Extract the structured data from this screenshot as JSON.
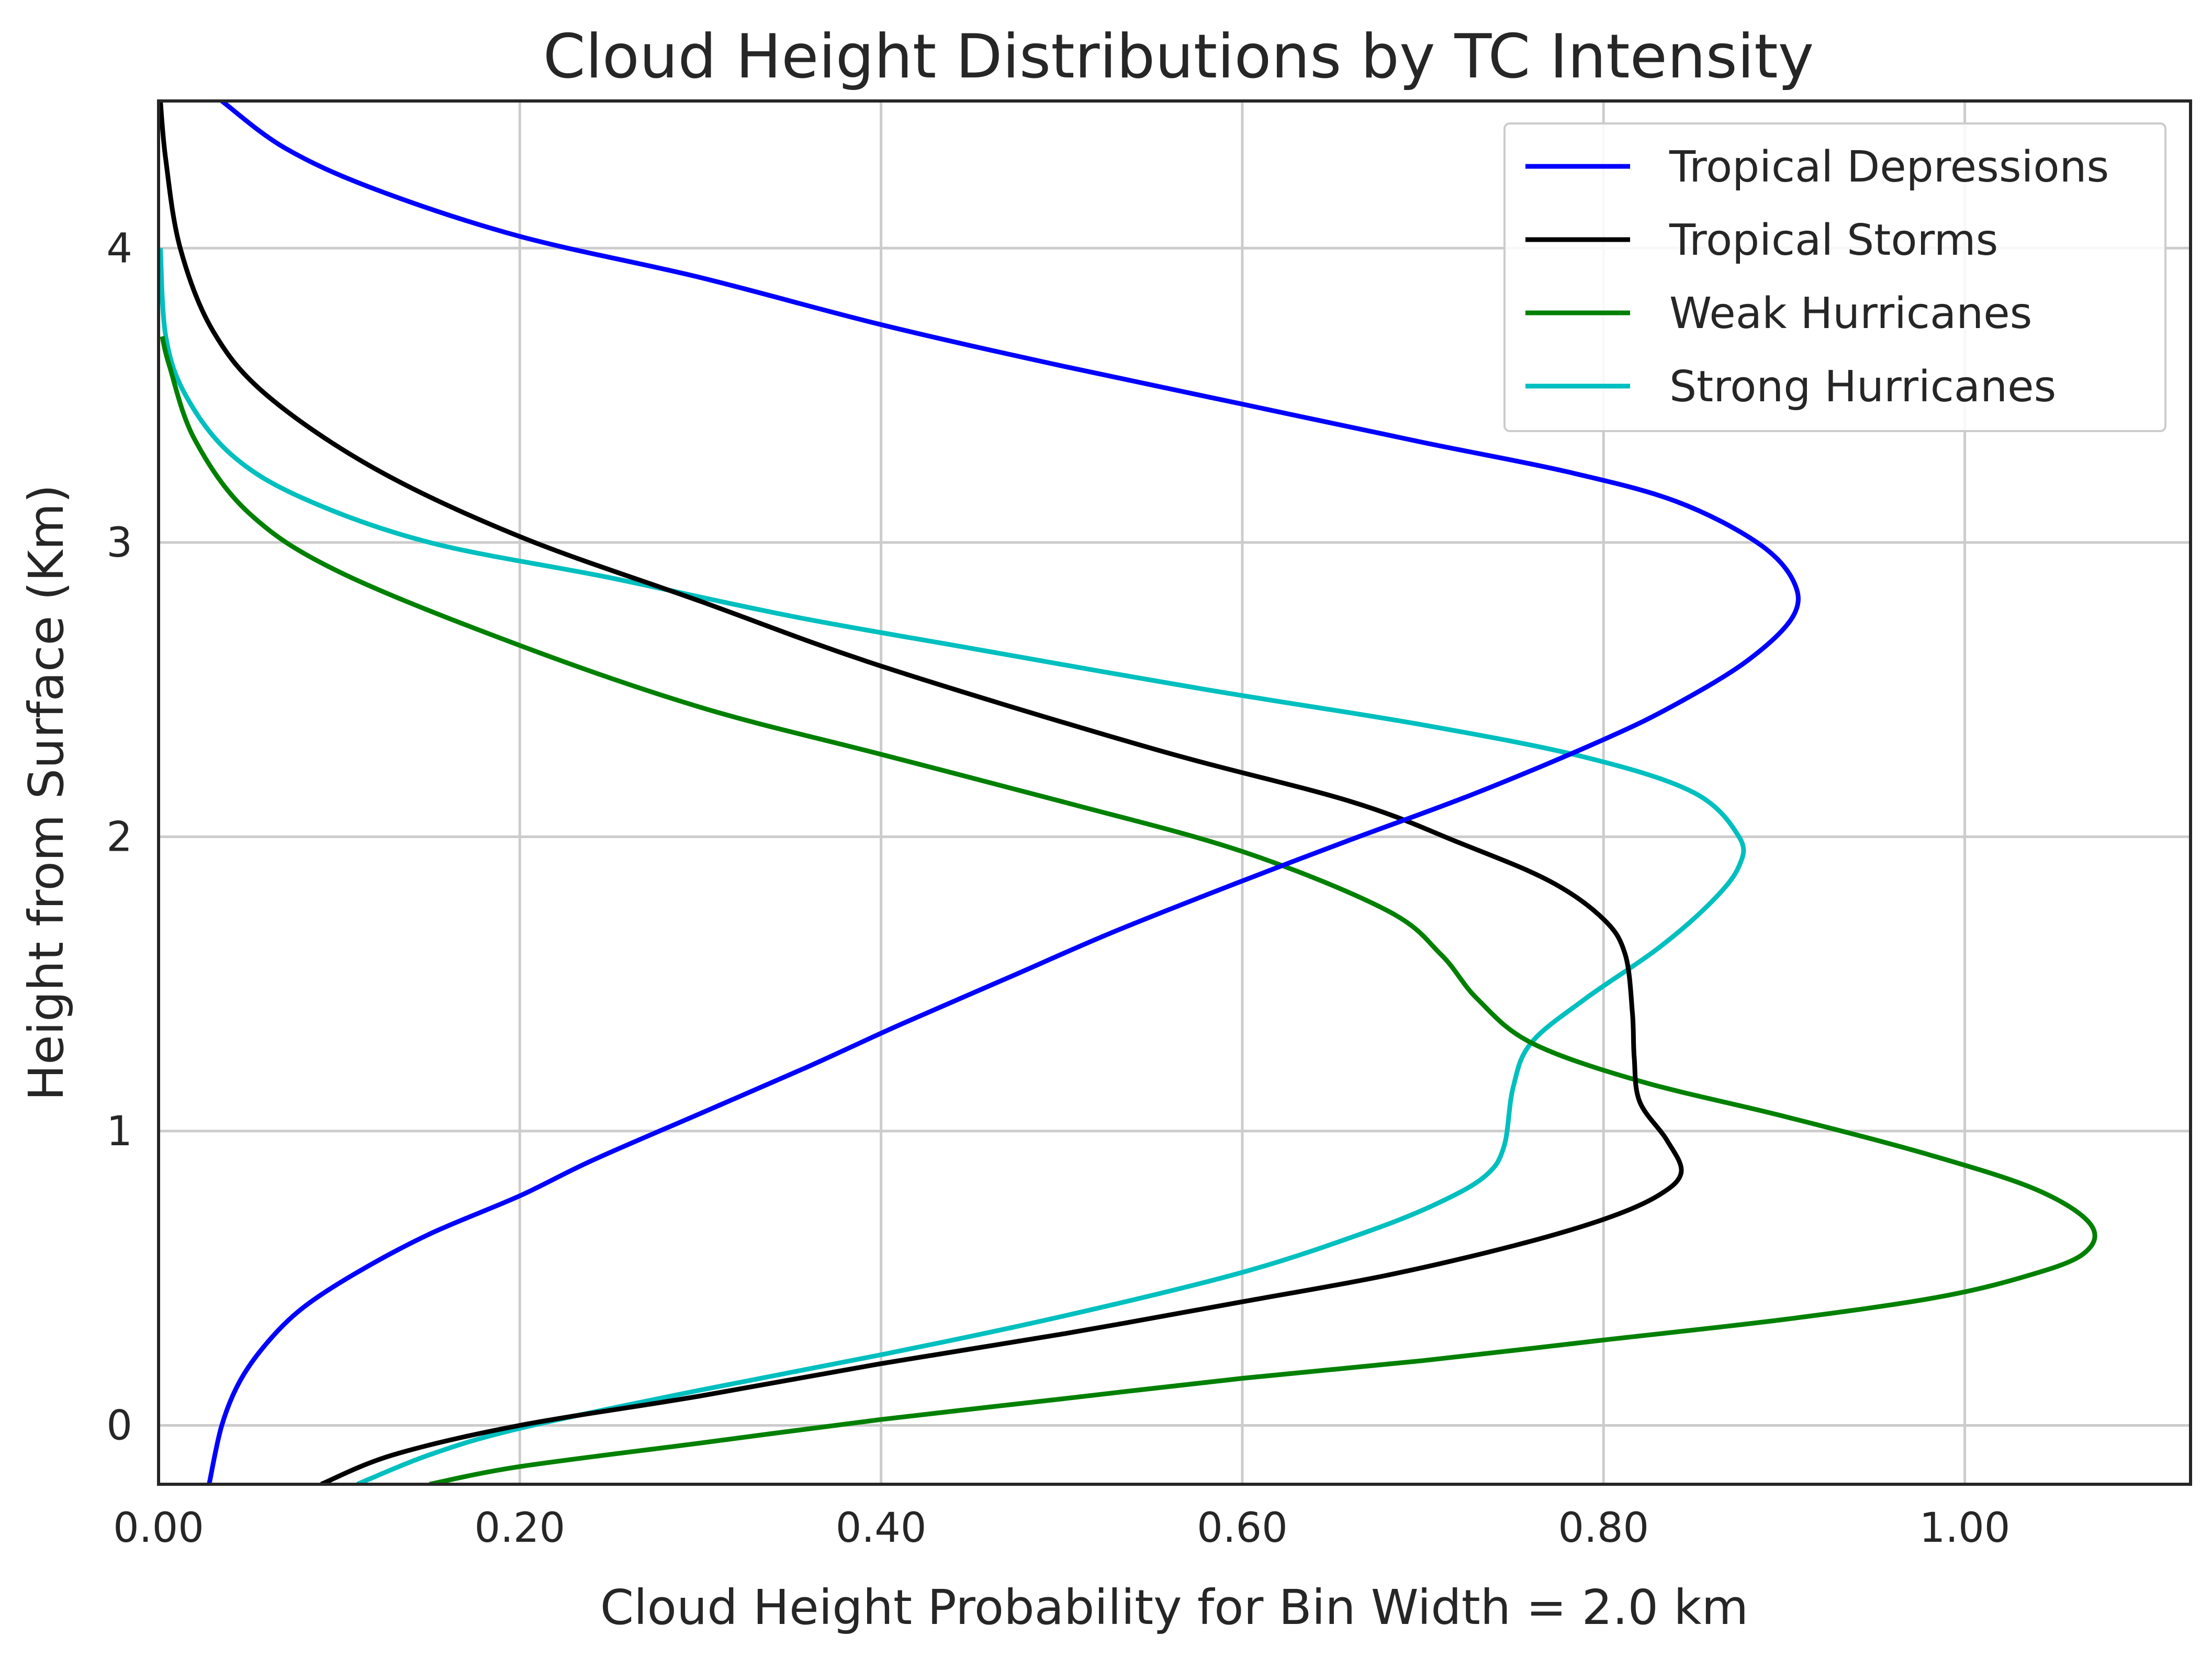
{
  "chart_data": {
    "type": "line",
    "title": "Cloud Height Distributions by TC Intensity",
    "xlabel": "Cloud Height Probability for Bin Width = 2.0 km",
    "ylabel": "Height from Surface (Km)",
    "xlim": [
      0.0,
      1.125
    ],
    "ylim": [
      -0.2,
      4.5
    ],
    "xticks": [
      0.0,
      0.2,
      0.4,
      0.6,
      0.8,
      1.0
    ],
    "xtick_labels": [
      "0.00",
      "0.20",
      "0.40",
      "0.60",
      "0.80",
      "1.00"
    ],
    "yticks": [
      0,
      1,
      2,
      3,
      4
    ],
    "ytick_labels": [
      "0",
      "1",
      "2",
      "3",
      "4"
    ],
    "grid": true,
    "legend_position": "top-right",
    "series": [
      {
        "name": "Tropical Depressions",
        "color": "#0000ff",
        "points": [
          [
            0.028,
            -0.2
          ],
          [
            0.035,
            0.0
          ],
          [
            0.045,
            0.15
          ],
          [
            0.06,
            0.28
          ],
          [
            0.08,
            0.4
          ],
          [
            0.11,
            0.52
          ],
          [
            0.15,
            0.65
          ],
          [
            0.2,
            0.78
          ],
          [
            0.24,
            0.9
          ],
          [
            0.3,
            1.06
          ],
          [
            0.36,
            1.22
          ],
          [
            0.41,
            1.36
          ],
          [
            0.47,
            1.52
          ],
          [
            0.53,
            1.68
          ],
          [
            0.6,
            1.85
          ],
          [
            0.66,
            1.99
          ],
          [
            0.73,
            2.15
          ],
          [
            0.8,
            2.33
          ],
          [
            0.84,
            2.45
          ],
          [
            0.88,
            2.6
          ],
          [
            0.905,
            2.75
          ],
          [
            0.905,
            2.87
          ],
          [
            0.885,
            3.0
          ],
          [
            0.84,
            3.14
          ],
          [
            0.78,
            3.24
          ],
          [
            0.7,
            3.34
          ],
          [
            0.6,
            3.47
          ],
          [
            0.5,
            3.6
          ],
          [
            0.4,
            3.74
          ],
          [
            0.3,
            3.9
          ],
          [
            0.2,
            4.04
          ],
          [
            0.12,
            4.2
          ],
          [
            0.07,
            4.34
          ],
          [
            0.035,
            4.5
          ]
        ]
      },
      {
        "name": "Tropical Storms",
        "color": "#000000",
        "points": [
          [
            0.09,
            -0.2
          ],
          [
            0.13,
            -0.1
          ],
          [
            0.2,
            0.0
          ],
          [
            0.3,
            0.1
          ],
          [
            0.4,
            0.21
          ],
          [
            0.5,
            0.31
          ],
          [
            0.6,
            0.42
          ],
          [
            0.68,
            0.51
          ],
          [
            0.75,
            0.61
          ],
          [
            0.8,
            0.7
          ],
          [
            0.83,
            0.78
          ],
          [
            0.843,
            0.86
          ],
          [
            0.835,
            0.97
          ],
          [
            0.82,
            1.1
          ],
          [
            0.817,
            1.25
          ],
          [
            0.816,
            1.4
          ],
          [
            0.812,
            1.6
          ],
          [
            0.8,
            1.72
          ],
          [
            0.77,
            1.85
          ],
          [
            0.72,
            1.98
          ],
          [
            0.66,
            2.12
          ],
          [
            0.55,
            2.3
          ],
          [
            0.4,
            2.58
          ],
          [
            0.3,
            2.8
          ],
          [
            0.2,
            3.02
          ],
          [
            0.12,
            3.25
          ],
          [
            0.06,
            3.5
          ],
          [
            0.03,
            3.72
          ],
          [
            0.012,
            4.0
          ],
          [
            0.004,
            4.3
          ],
          [
            0.001,
            4.5
          ]
        ]
      },
      {
        "name": "Weak Hurricanes",
        "color": "#008000",
        "points": [
          [
            0.15,
            -0.2
          ],
          [
            0.2,
            -0.14
          ],
          [
            0.3,
            -0.06
          ],
          [
            0.4,
            0.02
          ],
          [
            0.5,
            0.09
          ],
          [
            0.6,
            0.16
          ],
          [
            0.7,
            0.22
          ],
          [
            0.8,
            0.29
          ],
          [
            0.9,
            0.36
          ],
          [
            0.98,
            0.43
          ],
          [
            1.03,
            0.5
          ],
          [
            1.065,
            0.58
          ],
          [
            1.07,
            0.68
          ],
          [
            1.04,
            0.8
          ],
          [
            0.98,
            0.92
          ],
          [
            0.9,
            1.05
          ],
          [
            0.82,
            1.17
          ],
          [
            0.76,
            1.3
          ],
          [
            0.73,
            1.45
          ],
          [
            0.71,
            1.6
          ],
          [
            0.68,
            1.75
          ],
          [
            0.6,
            1.95
          ],
          [
            0.5,
            2.12
          ],
          [
            0.4,
            2.28
          ],
          [
            0.3,
            2.44
          ],
          [
            0.2,
            2.65
          ],
          [
            0.1,
            2.9
          ],
          [
            0.05,
            3.1
          ],
          [
            0.02,
            3.35
          ],
          [
            0.006,
            3.6
          ],
          [
            0.002,
            3.7
          ]
        ]
      },
      {
        "name": "Strong Hurricanes",
        "color": "#00bfbf",
        "points": [
          [
            0.11,
            -0.2
          ],
          [
            0.15,
            -0.1
          ],
          [
            0.2,
            -0.01
          ],
          [
            0.3,
            0.12
          ],
          [
            0.4,
            0.24
          ],
          [
            0.5,
            0.37
          ],
          [
            0.6,
            0.52
          ],
          [
            0.67,
            0.66
          ],
          [
            0.71,
            0.76
          ],
          [
            0.735,
            0.85
          ],
          [
            0.745,
            0.95
          ],
          [
            0.75,
            1.15
          ],
          [
            0.76,
            1.3
          ],
          [
            0.79,
            1.45
          ],
          [
            0.83,
            1.62
          ],
          [
            0.86,
            1.78
          ],
          [
            0.875,
            1.9
          ],
          [
            0.875,
            2.0
          ],
          [
            0.85,
            2.15
          ],
          [
            0.79,
            2.27
          ],
          [
            0.7,
            2.38
          ],
          [
            0.58,
            2.5
          ],
          [
            0.45,
            2.64
          ],
          [
            0.35,
            2.75
          ],
          [
            0.25,
            2.88
          ],
          [
            0.15,
            3.0
          ],
          [
            0.08,
            3.15
          ],
          [
            0.04,
            3.3
          ],
          [
            0.015,
            3.5
          ],
          [
            0.004,
            3.7
          ],
          [
            0.001,
            4.0
          ]
        ]
      }
    ]
  }
}
